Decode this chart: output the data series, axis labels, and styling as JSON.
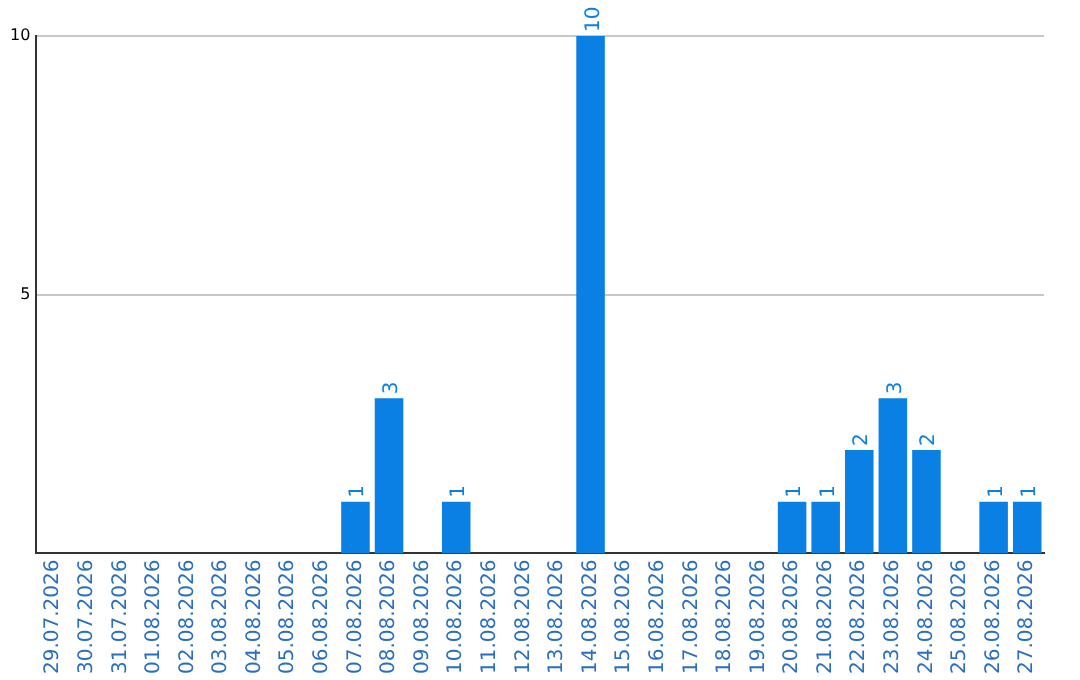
{
  "chart_data": {
    "type": "bar",
    "categories": [
      "29.07.2026",
      "30.07.2026",
      "31.07.2026",
      "01.08.2026",
      "02.08.2026",
      "03.08.2026",
      "04.08.2026",
      "05.08.2026",
      "06.08.2026",
      "07.08.2026",
      "08.08.2026",
      "09.08.2026",
      "10.08.2026",
      "11.08.2026",
      "12.08.2026",
      "13.08.2026",
      "14.08.2026",
      "15.08.2026",
      "16.08.2026",
      "17.08.2026",
      "18.08.2026",
      "19.08.2026",
      "20.08.2026",
      "21.08.2026",
      "22.08.2026",
      "23.08.2026",
      "24.08.2026",
      "25.08.2026",
      "26.08.2026",
      "27.08.2026"
    ],
    "values": [
      0,
      0,
      0,
      0,
      0,
      0,
      0,
      0,
      0,
      1,
      3,
      0,
      1,
      0,
      0,
      0,
      10,
      0,
      0,
      0,
      0,
      0,
      1,
      1,
      2,
      3,
      2,
      0,
      1,
      1
    ],
    "value_labels": [
      null,
      null,
      null,
      null,
      null,
      null,
      null,
      null,
      null,
      "1",
      "3",
      null,
      "1",
      null,
      null,
      null,
      "10",
      null,
      null,
      null,
      null,
      null,
      "1",
      "1",
      "2",
      "3",
      "2",
      null,
      "1",
      "1"
    ],
    "color": "#0a80e4",
    "ylim": [
      0,
      10
    ],
    "yticks": [
      5,
      10
    ],
    "grid": "y",
    "legend": false
  }
}
